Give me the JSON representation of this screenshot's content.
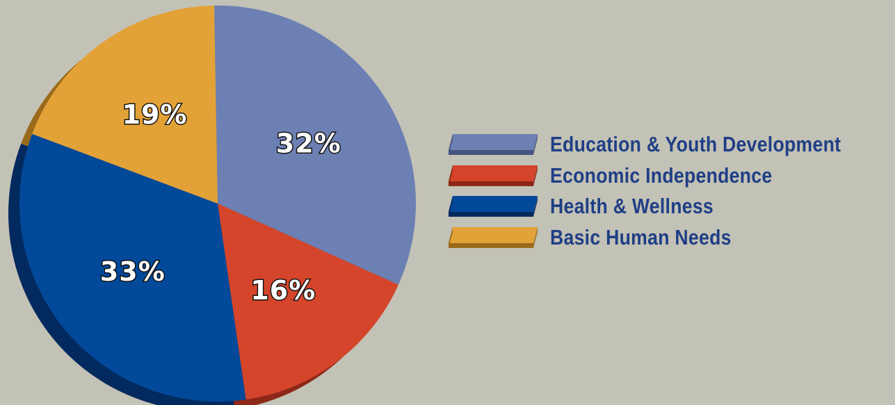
{
  "chart_data": {
    "type": "pie",
    "title": "",
    "legend_position": "right",
    "slices": [
      {
        "label": "Education & Youth Development",
        "value": 32,
        "display": "32%",
        "color": "#6d80b3",
        "side_color": "#45557f"
      },
      {
        "label": "Economic Independence",
        "value": 16,
        "display": "16%",
        "color": "#d4452b",
        "side_color": "#8d2718"
      },
      {
        "label": "Health & Wellness",
        "value": 33,
        "display": "33%",
        "color": "#02499a",
        "side_color": "#022a5e"
      },
      {
        "label": "Basic Human Needs",
        "value": 19,
        "display": "19%",
        "color": "#e3a237",
        "side_color": "#9a6a1c"
      }
    ]
  },
  "colors": {
    "background": "#c3c2b6",
    "legend_text": "#1f3f86",
    "label_outline": "#111111"
  }
}
